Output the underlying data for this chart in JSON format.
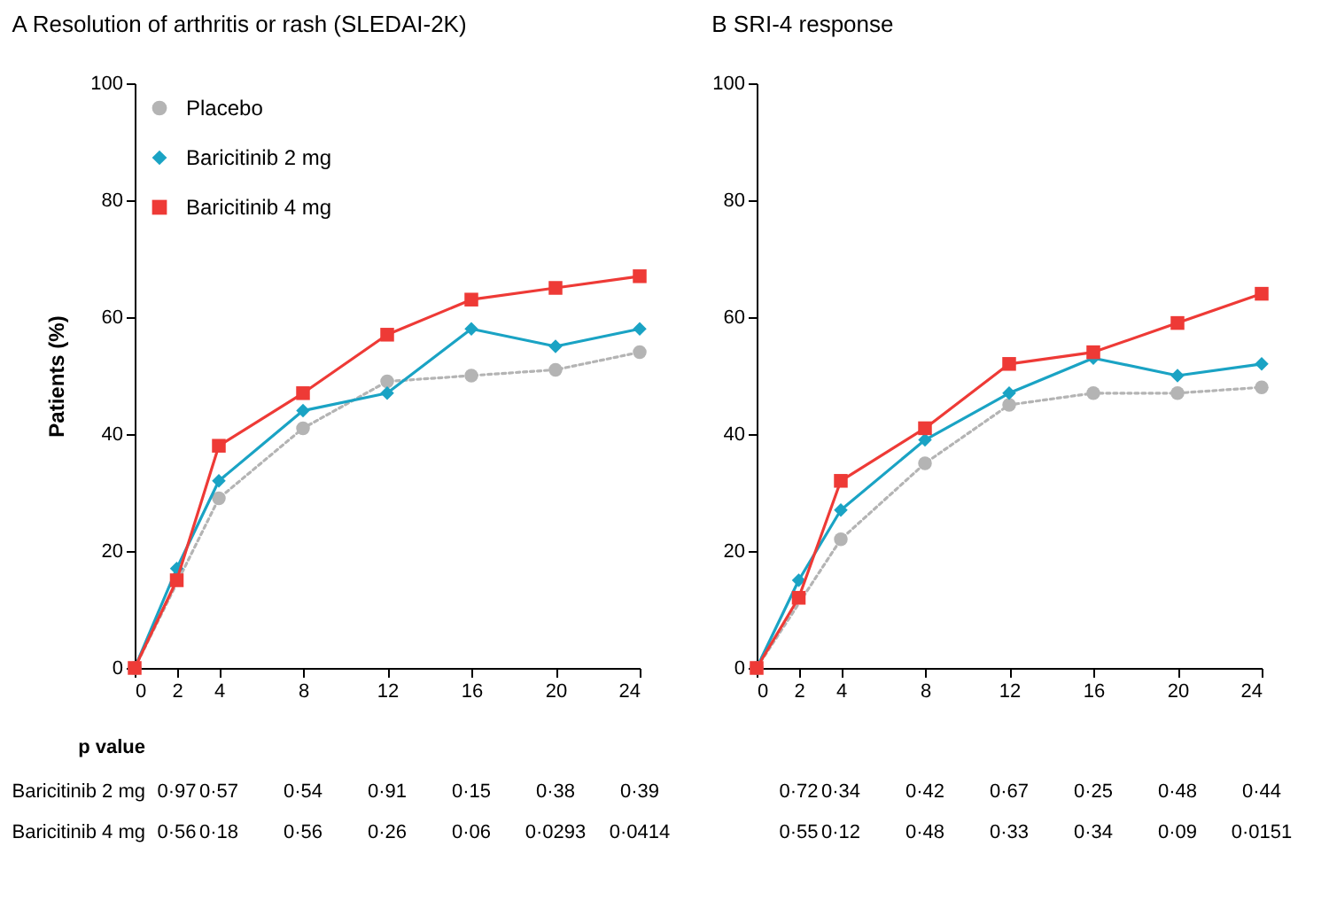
{
  "chart_data": [
    {
      "type": "line",
      "title": "A Resolution of arthritis or rash (SLEDAI-2K)",
      "ylabel": "Patients (%)",
      "x": [
        0,
        2,
        4,
        8,
        12,
        16,
        20,
        24
      ],
      "xlim": [
        0,
        24
      ],
      "xticks": [
        0,
        2,
        4,
        8,
        12,
        16,
        20,
        24
      ],
      "ylim": [
        0,
        100
      ],
      "yticks": [
        0,
        20,
        40,
        60,
        80,
        100
      ],
      "grid": false,
      "legend": "top left",
      "series": [
        {
          "name": "Placebo",
          "color": "#b4b4b4",
          "marker": "circle",
          "line_style": "dotted",
          "values": [
            0,
            null,
            29,
            41,
            49,
            50,
            51,
            54
          ]
        },
        {
          "name": "Baricitinib 2 mg",
          "color": "#1aa3c4",
          "marker": "diamond",
          "line_style": "solid",
          "values": [
            0,
            17,
            32,
            44,
            47,
            58,
            55,
            58
          ]
        },
        {
          "name": "Baricitinib 4 mg",
          "color": "#ee3a36",
          "marker": "square",
          "line_style": "solid",
          "values": [
            0,
            15,
            38,
            47,
            57,
            63,
            65,
            67
          ]
        }
      ],
      "annotations": [
        "p value",
        "Baricitinib 2 mg",
        "0·97",
        "0·57",
        "0·54",
        "0·91",
        "0·15",
        "0·38",
        "0·39",
        "Baricitinib 4 mg",
        "0·56",
        "0·18",
        "0·56",
        "0·26",
        "0·06",
        "0·0293",
        "0·0414"
      ]
    },
    {
      "type": "line",
      "title": "B SRI-4 response",
      "x": [
        0,
        2,
        4,
        8,
        12,
        16,
        20,
        24
      ],
      "xlim": [
        0,
        24
      ],
      "xticks": [
        0,
        2,
        4,
        8,
        12,
        16,
        20,
        24
      ],
      "ylim": [
        0,
        100
      ],
      "yticks": [
        0,
        20,
        40,
        60,
        80,
        100
      ],
      "grid": false,
      "series": [
        {
          "color": "#b4b4b4",
          "marker": "circle",
          "line_style": "dotted",
          "values": [
            0,
            null,
            22,
            35,
            45,
            47,
            47,
            48
          ]
        },
        {
          "color": "#1aa3c4",
          "marker": "diamond",
          "line_style": "solid",
          "values": [
            0,
            15,
            27,
            39,
            47,
            53,
            50,
            52
          ]
        },
        {
          "color": "#ee3a36",
          "marker": "square",
          "line_style": "solid",
          "values": [
            0,
            12,
            32,
            41,
            52,
            54,
            59,
            64
          ]
        }
      ],
      "annotations": [
        "0·72",
        "0·34",
        "0·42",
        "0·67",
        "0·25",
        "0·48",
        "0·44",
        "0·55",
        "0·12",
        "0·48",
        "0·33",
        "0·34",
        "0·09",
        "0·0151"
      ]
    }
  ]
}
